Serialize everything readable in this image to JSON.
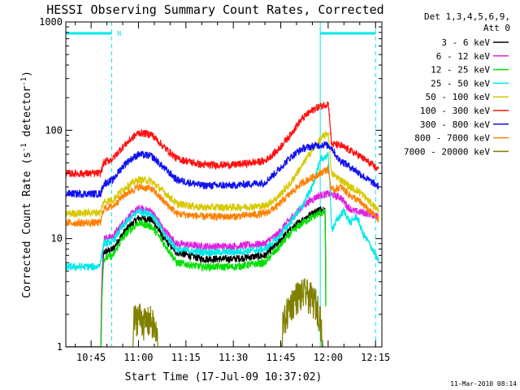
{
  "chart_data": {
    "type": "line",
    "title": "HESSI Observing Summary Count Rates, Corrected",
    "xlabel": "Start Time (17-Jul-09 10:37:02)",
    "ylabel": "Corrected Count Rate (s",
    "ylabel_sup": "-1",
    "ylabel_tail": " detector",
    "ylabel_sup2": "-1",
    "ylabel_close": ")",
    "ylog": true,
    "ylim": [
      1,
      1000
    ],
    "xlim_min": [
      37,
      137
    ],
    "x_ticks": [
      {
        "t": 45,
        "label": "10:45"
      },
      {
        "t": 60,
        "label": "11:00"
      },
      {
        "t": 75,
        "label": "11:15"
      },
      {
        "t": 90,
        "label": "11:30"
      },
      {
        "t": 105,
        "label": "11:45"
      },
      {
        "t": 120,
        "label": "12:00"
      },
      {
        "t": 135,
        "label": "12:15"
      }
    ],
    "y_ticks": [
      {
        "v": 1,
        "label": "1"
      },
      {
        "v": 10,
        "label": "10"
      },
      {
        "v": 100,
        "label": "100"
      },
      {
        "v": 1000,
        "label": "1000"
      }
    ],
    "legend_header": [
      "Det 1,3,4,5,6,9,",
      "Att 0"
    ],
    "legend_position": "right",
    "timestamp": "11-Mar-2010 08:14",
    "flag_label": "N",
    "night_bands": [
      [
        37,
        51.5
      ],
      [
        117.5,
        135
      ]
    ],
    "series": [
      {
        "name": "3 - 6 keV",
        "color": "#000000",
        "points": [
          [
            37,
            0
          ],
          [
            48,
            0
          ],
          [
            49,
            7.5
          ],
          [
            52,
            8
          ],
          [
            56,
            12
          ],
          [
            60,
            15.5
          ],
          [
            64,
            15
          ],
          [
            68,
            10
          ],
          [
            72,
            7.5
          ],
          [
            80,
            6.5
          ],
          [
            90,
            6.5
          ],
          [
            100,
            7
          ],
          [
            104,
            9
          ],
          [
            108,
            12
          ],
          [
            112,
            15
          ],
          [
            117,
            18.5
          ],
          [
            119,
            19
          ],
          [
            119.3,
            0
          ]
        ]
      },
      {
        "name": "6 - 12 keV",
        "color": "#e020e0",
        "points": [
          [
            37,
            0
          ],
          [
            48,
            0
          ],
          [
            49,
            10
          ],
          [
            52,
            10.5
          ],
          [
            56,
            15
          ],
          [
            60,
            19
          ],
          [
            64,
            18
          ],
          [
            68,
            12
          ],
          [
            72,
            9
          ],
          [
            80,
            8.5
          ],
          [
            90,
            8.5
          ],
          [
            100,
            9
          ],
          [
            104,
            11
          ],
          [
            108,
            15
          ],
          [
            112,
            20
          ],
          [
            117,
            25
          ],
          [
            120,
            26
          ],
          [
            124,
            24
          ],
          [
            126,
            20
          ],
          [
            128,
            18
          ],
          [
            133,
            17
          ],
          [
            136,
            16
          ]
        ]
      },
      {
        "name": "12 - 25 keV",
        "color": "#00e000",
        "points": [
          [
            37,
            0
          ],
          [
            48,
            0
          ],
          [
            49,
            6.5
          ],
          [
            52,
            7
          ],
          [
            56,
            11
          ],
          [
            60,
            14
          ],
          [
            64,
            13
          ],
          [
            68,
            9
          ],
          [
            72,
            6
          ],
          [
            80,
            5.5
          ],
          [
            90,
            5.5
          ],
          [
            100,
            6
          ],
          [
            104,
            8
          ],
          [
            108,
            11
          ],
          [
            112,
            14
          ],
          [
            117,
            17
          ],
          [
            119,
            17.5
          ],
          [
            119.3,
            0
          ]
        ]
      },
      {
        "name": "25 - 50 keV",
        "color": "#00e8e8",
        "points": [
          [
            37,
            5.5
          ],
          [
            47,
            5.5
          ],
          [
            48,
            6
          ],
          [
            49,
            9
          ],
          [
            52,
            9.5
          ],
          [
            56,
            14
          ],
          [
            60,
            18
          ],
          [
            64,
            17
          ],
          [
            68,
            11
          ],
          [
            72,
            8
          ],
          [
            80,
            7.5
          ],
          [
            90,
            7.5
          ],
          [
            100,
            8
          ],
          [
            104,
            10
          ],
          [
            108,
            14
          ],
          [
            112,
            20
          ],
          [
            115,
            30
          ],
          [
            118,
            55
          ],
          [
            120,
            58
          ],
          [
            121,
            12
          ],
          [
            123,
            15
          ],
          [
            125,
            18
          ],
          [
            127,
            14
          ],
          [
            129,
            16
          ],
          [
            131,
            11
          ],
          [
            133,
            9
          ],
          [
            135,
            7
          ],
          [
            136,
            6
          ]
        ]
      },
      {
        "name": "50 - 100 keV",
        "color": "#d8c800",
        "points": [
          [
            37,
            17
          ],
          [
            48,
            17.5
          ],
          [
            49,
            22
          ],
          [
            52,
            23
          ],
          [
            56,
            30
          ],
          [
            60,
            35
          ],
          [
            64,
            34
          ],
          [
            68,
            27
          ],
          [
            72,
            21
          ],
          [
            80,
            19.5
          ],
          [
            90,
            19.5
          ],
          [
            100,
            20
          ],
          [
            104,
            24
          ],
          [
            108,
            32
          ],
          [
            112,
            48
          ],
          [
            116,
            72
          ],
          [
            118,
            85
          ],
          [
            120,
            95
          ],
          [
            121,
            40
          ],
          [
            124,
            35
          ],
          [
            127,
            30
          ],
          [
            130,
            27
          ],
          [
            133,
            22
          ],
          [
            136,
            18
          ]
        ]
      },
      {
        "name": "100 - 300 keV",
        "color": "#ff1010",
        "points": [
          [
            37,
            40
          ],
          [
            48,
            40
          ],
          [
            49,
            50
          ],
          [
            52,
            55
          ],
          [
            56,
            75
          ],
          [
            60,
            95
          ],
          [
            64,
            92
          ],
          [
            68,
            70
          ],
          [
            72,
            55
          ],
          [
            80,
            48
          ],
          [
            90,
            48
          ],
          [
            100,
            52
          ],
          [
            104,
            65
          ],
          [
            108,
            90
          ],
          [
            112,
            130
          ],
          [
            116,
            160
          ],
          [
            119.5,
            175
          ],
          [
            120,
            180
          ],
          [
            121,
            75
          ],
          [
            124,
            72
          ],
          [
            127,
            65
          ],
          [
            130,
            58
          ],
          [
            133,
            50
          ],
          [
            136,
            43
          ]
        ]
      },
      {
        "name": "300 - 800 keV",
        "color": "#1010f0",
        "points": [
          [
            37,
            26
          ],
          [
            48,
            26
          ],
          [
            49,
            32
          ],
          [
            52,
            35
          ],
          [
            56,
            50
          ],
          [
            60,
            60
          ],
          [
            64,
            58
          ],
          [
            68,
            45
          ],
          [
            72,
            35
          ],
          [
            80,
            31
          ],
          [
            90,
            31
          ],
          [
            100,
            33
          ],
          [
            104,
            42
          ],
          [
            108,
            56
          ],
          [
            112,
            68
          ],
          [
            116,
            72
          ],
          [
            119,
            74
          ],
          [
            121,
            70
          ],
          [
            123,
            55
          ],
          [
            126,
            48
          ],
          [
            129,
            42
          ],
          [
            132,
            36
          ],
          [
            136,
            30
          ]
        ]
      },
      {
        "name": "800 - 7000 keV",
        "color": "#ff8000",
        "points": [
          [
            37,
            14
          ],
          [
            48,
            14
          ],
          [
            49,
            19
          ],
          [
            52,
            20
          ],
          [
            56,
            26
          ],
          [
            60,
            30
          ],
          [
            64,
            29
          ],
          [
            68,
            22
          ],
          [
            72,
            17
          ],
          [
            80,
            16
          ],
          [
            90,
            16
          ],
          [
            100,
            17
          ],
          [
            104,
            20
          ],
          [
            108,
            26
          ],
          [
            112,
            33
          ],
          [
            116,
            38
          ],
          [
            120,
            44
          ],
          [
            121,
            28
          ],
          [
            124,
            30
          ],
          [
            127,
            25
          ],
          [
            130,
            22
          ],
          [
            133,
            18
          ],
          [
            136,
            15
          ]
        ]
      },
      {
        "name": "7000 - 20000 keV",
        "color": "#808000",
        "points": [
          [
            37,
            0
          ],
          [
            58,
            0
          ],
          [
            58.5,
            1.8
          ],
          [
            60,
            2
          ],
          [
            62,
            1.7
          ],
          [
            64,
            1.8
          ],
          [
            66,
            1.2
          ],
          [
            66.5,
            0
          ],
          [
            105,
            0
          ],
          [
            105.5,
            1.5
          ],
          [
            108,
            2.5
          ],
          [
            110,
            3
          ],
          [
            113,
            3.2
          ],
          [
            116,
            2.6
          ],
          [
            117.5,
            2
          ],
          [
            118,
            1.2
          ],
          [
            119,
            0
          ]
        ]
      }
    ]
  }
}
